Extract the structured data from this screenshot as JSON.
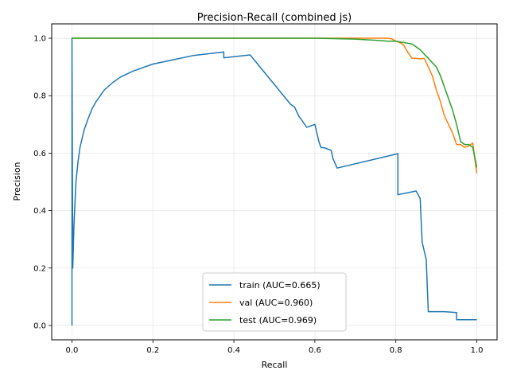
{
  "chart_data": {
    "type": "line",
    "title": "Precision-Recall (combined js)",
    "xlabel": "Recall",
    "ylabel": "Precision",
    "xlim": [
      -0.05,
      1.05
    ],
    "ylim": [
      -0.05,
      1.05
    ],
    "xticks": [
      "0.0",
      "0.2",
      "0.4",
      "0.6",
      "0.8",
      "1.0"
    ],
    "yticks": [
      "0.0",
      "0.2",
      "0.4",
      "0.6",
      "0.8",
      "1.0"
    ],
    "grid": true,
    "legend_position": "lower-center",
    "series": [
      {
        "name": "train (AUC=0.665)",
        "color": "#1f77b4",
        "x": [
          0,
          0,
          0.002,
          0.005,
          0.01,
          0.015,
          0.02,
          0.03,
          0.04,
          0.05,
          0.06,
          0.08,
          0.1,
          0.12,
          0.15,
          0.18,
          0.2,
          0.25,
          0.3,
          0.35,
          0.375,
          0.375,
          0.44,
          0.44,
          0.54,
          0.54,
          0.55,
          0.55,
          0.56,
          0.56,
          0.58,
          0.58,
          0.6,
          0.6,
          0.61,
          0.61,
          0.615,
          0.615,
          0.625,
          0.625,
          0.63,
          0.63,
          0.64,
          0.64,
          0.645,
          0.645,
          0.655,
          0.655,
          0.805,
          0.805,
          0.85,
          0.85,
          0.86,
          0.86,
          0.865,
          0.865,
          0.875,
          0.875,
          0.88,
          0.88,
          0.92,
          0.92,
          0.95,
          0.95,
          0.98,
          1.0
        ],
        "y": [
          0,
          1.0,
          0.2,
          0.35,
          0.5,
          0.57,
          0.62,
          0.68,
          0.72,
          0.755,
          0.78,
          0.82,
          0.845,
          0.865,
          0.885,
          0.9,
          0.91,
          0.925,
          0.94,
          0.948,
          0.952,
          0.932,
          0.942,
          0.942,
          0.77,
          0.77,
          0.76,
          0.76,
          0.73,
          0.73,
          0.69,
          0.69,
          0.7,
          0.7,
          0.64,
          0.64,
          0.62,
          0.62,
          0.618,
          0.618,
          0.615,
          0.615,
          0.61,
          0.61,
          0.58,
          0.58,
          0.548,
          0.548,
          0.598,
          0.455,
          0.468,
          0.468,
          0.442,
          0.442,
          0.29,
          0.29,
          0.23,
          0.23,
          0.048,
          0.048,
          0.048,
          0.048,
          0.045,
          0.02,
          0.02,
          0.02
        ]
      },
      {
        "name": "val (AUC=0.960)",
        "color": "#ff7f0e",
        "x": [
          0,
          0.6,
          0.78,
          0.79,
          0.8,
          0.81,
          0.82,
          0.83,
          0.84,
          0.85,
          0.86,
          0.87,
          0.88,
          0.89,
          0.9,
          0.905,
          0.91,
          0.92,
          0.93,
          0.94,
          0.95,
          0.96,
          0.97,
          0.98,
          0.99,
          0.995,
          1.0
        ],
        "y": [
          1.0,
          1.0,
          1.0,
          0.998,
          0.99,
          0.985,
          0.975,
          0.95,
          0.93,
          0.93,
          0.928,
          0.93,
          0.9,
          0.87,
          0.82,
          0.8,
          0.78,
          0.73,
          0.7,
          0.67,
          0.63,
          0.63,
          0.62,
          0.625,
          0.635,
          0.58,
          0.53
        ]
      },
      {
        "name": "test (AUC=0.969)",
        "color": "#2ca02c",
        "x": [
          0,
          0.6,
          0.7,
          0.75,
          0.78,
          0.8,
          0.82,
          0.84,
          0.86,
          0.88,
          0.9,
          0.91,
          0.92,
          0.93,
          0.94,
          0.95,
          0.96,
          0.97,
          0.98,
          0.99,
          1.0
        ],
        "y": [
          1.0,
          1.0,
          0.997,
          0.993,
          0.99,
          0.99,
          0.985,
          0.98,
          0.96,
          0.93,
          0.9,
          0.87,
          0.83,
          0.79,
          0.75,
          0.7,
          0.64,
          0.63,
          0.63,
          0.62,
          0.55
        ]
      }
    ]
  }
}
